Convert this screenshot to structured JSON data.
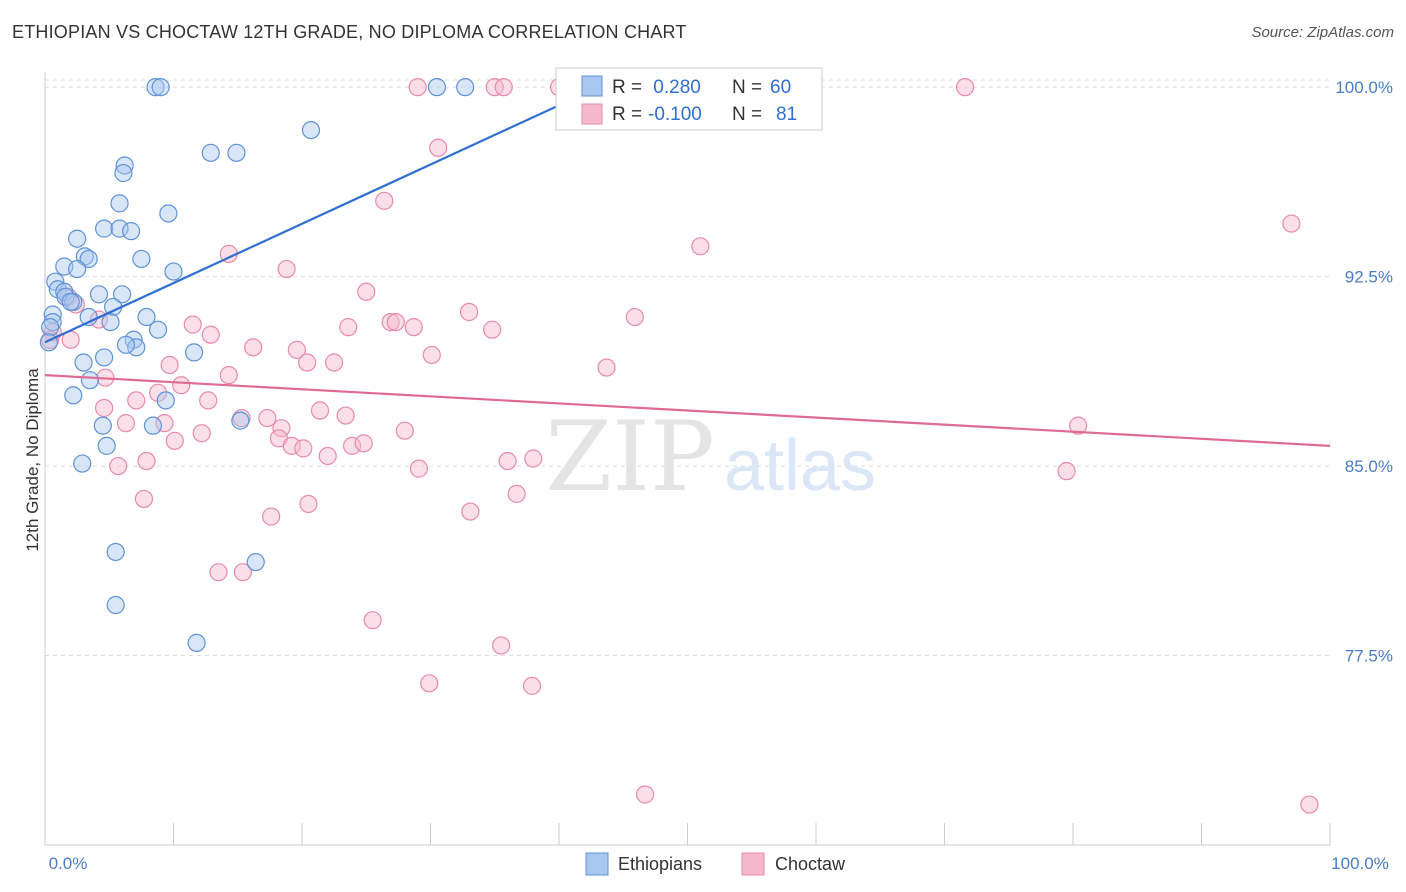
{
  "title": "ETHIOPIAN VS CHOCTAW 12TH GRADE, NO DIPLOMA CORRELATION CHART",
  "source": "Source: ZipAtlas.com",
  "watermark": {
    "zip": "ZIP",
    "atlas": "atlas"
  },
  "colors": {
    "blue_fill": "#a9c8f0",
    "blue_stroke": "#5f93d6",
    "blue_line": "#2f6fd0",
    "pink_fill": "#f5b8cc",
    "pink_stroke": "#e88aab",
    "pink_line": "#e06a96",
    "grid": "#dddddd",
    "tick_text": "#4a7cc7"
  },
  "chart_data": {
    "type": "scatter",
    "title": "ETHIOPIAN VS CHOCTAW 12TH GRADE, NO DIPLOMA CORRELATION CHART",
    "xlabel": "",
    "ylabel": "12th Grade, No Diploma",
    "xlim": [
      0,
      100
    ],
    "ylim": [
      70.0,
      100.6
    ],
    "x_tick_labels": [
      "0.0%",
      "100.0%"
    ],
    "y_ticks": [
      77.5,
      85.0,
      92.5,
      100.0
    ],
    "y_tick_labels": [
      "77.5%",
      "85.0%",
      "92.5%",
      "100.0%"
    ],
    "legend": [
      {
        "label_r": "R =",
        "r": " 0.280",
        "label_n": "N =",
        "n": "60"
      },
      {
        "label_r": "R =",
        "r": "-0.100",
        "label_n": "N =",
        "n": "81"
      }
    ],
    "series": [
      {
        "name": "Ethiopians",
        "color": "#a9c8f0",
        "trend": {
          "x": [
            0,
            40.5
          ],
          "y": [
            89.9,
            99.4
          ]
        },
        "points": [
          [
            8.6,
            100.0
          ],
          [
            9.0,
            100.0
          ],
          [
            30.5,
            100.0
          ],
          [
            32.7,
            100.0
          ],
          [
            20.7,
            98.3
          ],
          [
            12.9,
            97.4
          ],
          [
            14.9,
            97.4
          ],
          [
            6.2,
            96.9
          ],
          [
            6.1,
            96.6
          ],
          [
            5.8,
            95.4
          ],
          [
            9.6,
            95.0
          ],
          [
            4.6,
            94.4
          ],
          [
            5.8,
            94.4
          ],
          [
            6.7,
            94.3
          ],
          [
            2.5,
            94.0
          ],
          [
            3.1,
            93.3
          ],
          [
            3.4,
            93.2
          ],
          [
            7.5,
            93.2
          ],
          [
            1.5,
            92.9
          ],
          [
            2.5,
            92.8
          ],
          [
            10.0,
            92.7
          ],
          [
            0.8,
            92.3
          ],
          [
            1.0,
            92.0
          ],
          [
            1.5,
            91.9
          ],
          [
            1.6,
            91.7
          ],
          [
            6.0,
            91.8
          ],
          [
            4.2,
            91.8
          ],
          [
            2.2,
            91.5
          ],
          [
            2.0,
            91.5
          ],
          [
            5.3,
            91.3
          ],
          [
            0.6,
            91.0
          ],
          [
            3.4,
            90.9
          ],
          [
            7.9,
            90.9
          ],
          [
            0.6,
            90.7
          ],
          [
            5.1,
            90.7
          ],
          [
            0.4,
            90.5
          ],
          [
            8.8,
            90.4
          ],
          [
            6.9,
            90.0
          ],
          [
            7.1,
            89.7
          ],
          [
            6.3,
            89.8
          ],
          [
            11.6,
            89.5
          ],
          [
            4.6,
            89.3
          ],
          [
            3.0,
            89.1
          ],
          [
            3.5,
            88.4
          ],
          [
            2.2,
            87.8
          ],
          [
            9.4,
            87.6
          ],
          [
            8.4,
            86.6
          ],
          [
            4.5,
            86.6
          ],
          [
            15.2,
            86.8
          ],
          [
            4.8,
            85.8
          ],
          [
            2.9,
            85.1
          ],
          [
            5.5,
            81.6
          ],
          [
            16.4,
            81.2
          ],
          [
            5.5,
            79.5
          ],
          [
            11.8,
            78.0
          ],
          [
            0.3,
            89.9
          ]
        ]
      },
      {
        "name": "Choctaw",
        "color": "#f5b8cc",
        "trend": {
          "x": [
            0,
            100
          ],
          "y": [
            88.6,
            85.8
          ]
        },
        "points": [
          [
            29.0,
            100.0
          ],
          [
            35.0,
            100.0
          ],
          [
            35.7,
            100.0
          ],
          [
            40.0,
            100.0
          ],
          [
            71.6,
            100.0
          ],
          [
            30.6,
            97.6
          ],
          [
            26.4,
            95.5
          ],
          [
            97.0,
            94.6
          ],
          [
            51.0,
            93.7
          ],
          [
            14.3,
            93.4
          ],
          [
            18.8,
            92.8
          ],
          [
            25.0,
            91.9
          ],
          [
            33.0,
            91.1
          ],
          [
            45.9,
            90.9
          ],
          [
            1.8,
            91.7
          ],
          [
            2.4,
            91.4
          ],
          [
            11.5,
            90.6
          ],
          [
            23.6,
            90.5
          ],
          [
            26.9,
            90.7
          ],
          [
            27.3,
            90.7
          ],
          [
            28.7,
            90.5
          ],
          [
            34.8,
            90.4
          ],
          [
            0.6,
            90.3
          ],
          [
            2.0,
            90.0
          ],
          [
            4.2,
            90.8
          ],
          [
            12.9,
            90.2
          ],
          [
            16.2,
            89.7
          ],
          [
            19.6,
            89.6
          ],
          [
            20.4,
            89.1
          ],
          [
            22.5,
            89.1
          ],
          [
            30.1,
            89.4
          ],
          [
            43.7,
            88.9
          ],
          [
            9.7,
            89.0
          ],
          [
            14.3,
            88.6
          ],
          [
            4.7,
            88.5
          ],
          [
            8.8,
            87.9
          ],
          [
            10.6,
            88.2
          ],
          [
            12.7,
            87.6
          ],
          [
            7.1,
            87.6
          ],
          [
            4.6,
            87.3
          ],
          [
            21.4,
            87.2
          ],
          [
            23.4,
            87.0
          ],
          [
            15.3,
            86.9
          ],
          [
            17.3,
            86.9
          ],
          [
            6.3,
            86.7
          ],
          [
            9.3,
            86.7
          ],
          [
            18.4,
            86.5
          ],
          [
            18.2,
            86.1
          ],
          [
            28.0,
            86.4
          ],
          [
            10.1,
            86.0
          ],
          [
            12.2,
            86.3
          ],
          [
            19.2,
            85.8
          ],
          [
            20.1,
            85.7
          ],
          [
            22.0,
            85.4
          ],
          [
            23.9,
            85.8
          ],
          [
            24.8,
            85.9
          ],
          [
            36.0,
            85.2
          ],
          [
            38.0,
            85.3
          ],
          [
            7.9,
            85.2
          ],
          [
            5.7,
            85.0
          ],
          [
            29.1,
            84.9
          ],
          [
            80.4,
            86.6
          ],
          [
            79.5,
            84.8
          ],
          [
            36.7,
            83.9
          ],
          [
            7.7,
            83.7
          ],
          [
            20.5,
            83.5
          ],
          [
            33.1,
            83.2
          ],
          [
            17.6,
            83.0
          ],
          [
            13.5,
            80.8
          ],
          [
            15.4,
            80.8
          ],
          [
            25.5,
            78.9
          ],
          [
            35.5,
            77.9
          ],
          [
            29.9,
            76.4
          ],
          [
            37.9,
            76.3
          ],
          [
            46.7,
            72.0
          ],
          [
            98.4,
            71.6
          ],
          [
            0.4,
            90.0
          ]
        ]
      }
    ]
  },
  "bottom_legend": [
    "Ethiopians",
    "Choctaw"
  ]
}
